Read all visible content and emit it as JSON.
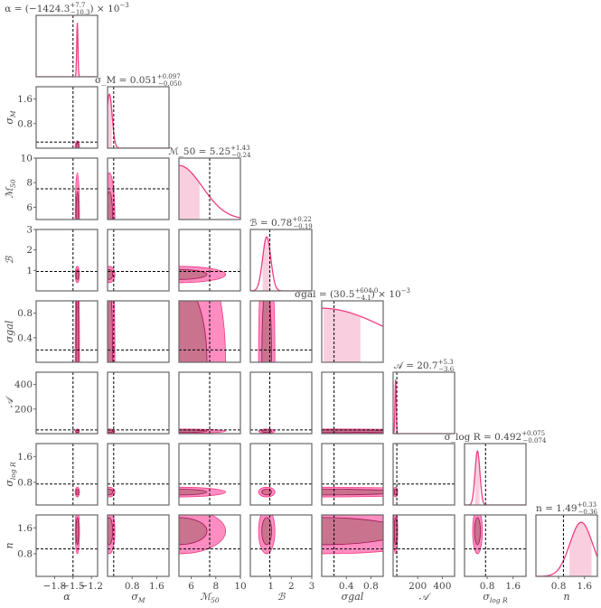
{
  "chart_data": {
    "type": "corner",
    "colors": {
      "line": "#f03c82",
      "fill_1d": "#f9cfe0",
      "contour_outer": "#ff8dc1",
      "contour_inner": "#c9738f",
      "contour_edge": "#9c1550",
      "truth": "#000000",
      "frame": "#666666",
      "text": "#444444"
    },
    "parameters": [
      {
        "label": "α",
        "sub": "",
        "range": [
          -2.1,
          -1.1
        ],
        "ticks": [
          -1.8,
          -1.5,
          -1.2
        ],
        "tick_labels": [
          "−1.8",
          "−1.5",
          "−1.2"
        ],
        "truth": -1.5,
        "center": -1.43,
        "sigma": 0.01,
        "title": {
          "name": "α = (",
          "value": "−1424.3",
          "plus": "+7.7",
          "minus": "−10.3",
          "scale": ") × 10",
          "exp": "−3"
        },
        "median": -1.4243,
        "lo": -1.4346,
        "hi": -1.4166
      },
      {
        "label": "σ",
        "sub": "M",
        "range": [
          0,
          2
        ],
        "ticks": [
          0.8,
          1.6
        ],
        "tick_labels": [
          "0.8",
          "1.6"
        ],
        "truth": 0.2,
        "center": 0.06,
        "sigma": 0.09,
        "title": {
          "name": "σ_M = ",
          "value": "0.051",
          "plus": "+0.097",
          "minus": "−0.050",
          "scale": "",
          "exp": ""
        },
        "median": 0.051,
        "lo": 0.001,
        "hi": 0.148
      },
      {
        "label": "ℳ",
        "sub": "50",
        "range": [
          5,
          10
        ],
        "ticks": [
          6,
          8,
          10
        ],
        "tick_labels": [
          "6",
          "8",
          "10"
        ],
        "truth": 7.5,
        "center": 5.0,
        "sigma": 1.9,
        "title": {
          "name": "ℳ_50 = ",
          "value": "5.25",
          "plus": "+1.43",
          "minus": "−0.24",
          "scale": "",
          "exp": ""
        },
        "median": 5.25,
        "lo": 5.01,
        "hi": 6.68
      },
      {
        "label": "ℬ",
        "sub": "",
        "range": [
          0,
          3
        ],
        "ticks": [
          1,
          2,
          3
        ],
        "tick_labels": [
          "1",
          "2",
          "3"
        ],
        "truth": 0.95,
        "center": 0.8,
        "sigma": 0.2,
        "title": {
          "name": "ℬ = ",
          "value": "0.78",
          "plus": "+0.22",
          "minus": "−0.19",
          "scale": "",
          "exp": ""
        },
        "median": 0.78,
        "lo": 0.59,
        "hi": 1.0
      },
      {
        "label": "σgal",
        "sub": "",
        "range": [
          0,
          1
        ],
        "ticks": [
          0.4,
          0.8
        ],
        "tick_labels": [
          "0.4",
          "0.8"
        ],
        "truth": 0.2,
        "center": 0.0,
        "sigma": 1.1,
        "title": {
          "name": "σgal = (",
          "value": "30.5",
          "plus": "+604.0",
          "minus": "−4.1",
          "scale": ") × 10",
          "exp": "−3"
        },
        "median": 0.0305,
        "lo": 0.0264,
        "hi": 0.6345
      },
      {
        "label": "𝒜",
        "sub": "",
        "range": [
          0,
          500
        ],
        "ticks": [
          200,
          400
        ],
        "tick_labels": [
          "200",
          "400"
        ],
        "truth": 30,
        "center": 20,
        "sigma": 5,
        "title": {
          "name": "𝒜 = ",
          "value": "20.7",
          "plus": "+5.3",
          "minus": "−3.6",
          "scale": "",
          "exp": ""
        },
        "median": 20.7,
        "lo": 17.1,
        "hi": 26.0
      },
      {
        "label": "σ",
        "sub": "log R",
        "range": [
          0.1,
          2.0
        ],
        "ticks": [
          0.8,
          1.6
        ],
        "tick_labels": [
          "0.8",
          "1.6"
        ],
        "truth": 0.75,
        "center": 0.5,
        "sigma": 0.075,
        "title": {
          "name": "σ_log R = ",
          "value": "0.492",
          "plus": "+0.075",
          "minus": "−0.074",
          "scale": "",
          "exp": ""
        },
        "median": 0.492,
        "lo": 0.418,
        "hi": 0.567
      },
      {
        "label": "n",
        "sub": "",
        "range": [
          0.1,
          2.0
        ],
        "ticks": [
          0.8,
          1.6
        ],
        "tick_labels": [
          "0.8",
          "1.6"
        ],
        "truth": 0.95,
        "center": 1.5,
        "sigma": 0.35,
        "title": {
          "name": "n = ",
          "value": "1.49",
          "plus": "+0.33",
          "minus": "−0.36",
          "scale": "",
          "exp": ""
        },
        "median": 1.49,
        "lo": 1.13,
        "hi": 1.82
      }
    ]
  }
}
